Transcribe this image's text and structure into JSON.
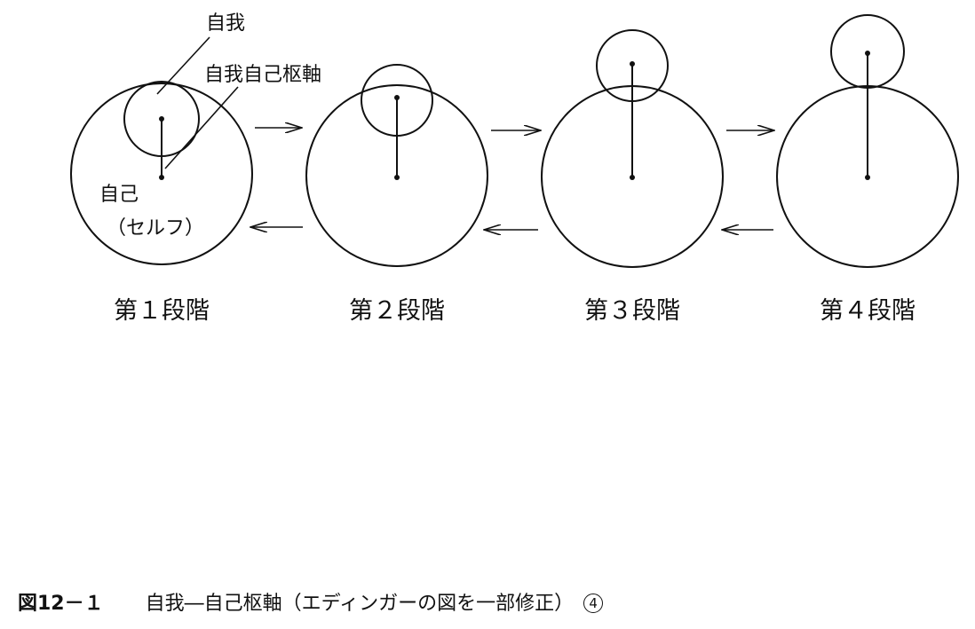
{
  "labels": {
    "ego": "自我",
    "ego_self_axis": "自我自己枢軸",
    "self": "自己",
    "self_reading": "（セルフ）"
  },
  "stages": [
    "第１段階",
    "第２段階",
    "第３段階",
    "第４段階"
  ],
  "caption": {
    "number": "図12－１",
    "text": "自我―自己枢軸（エディンガーの図を一部修正）",
    "ref": "4"
  }
}
